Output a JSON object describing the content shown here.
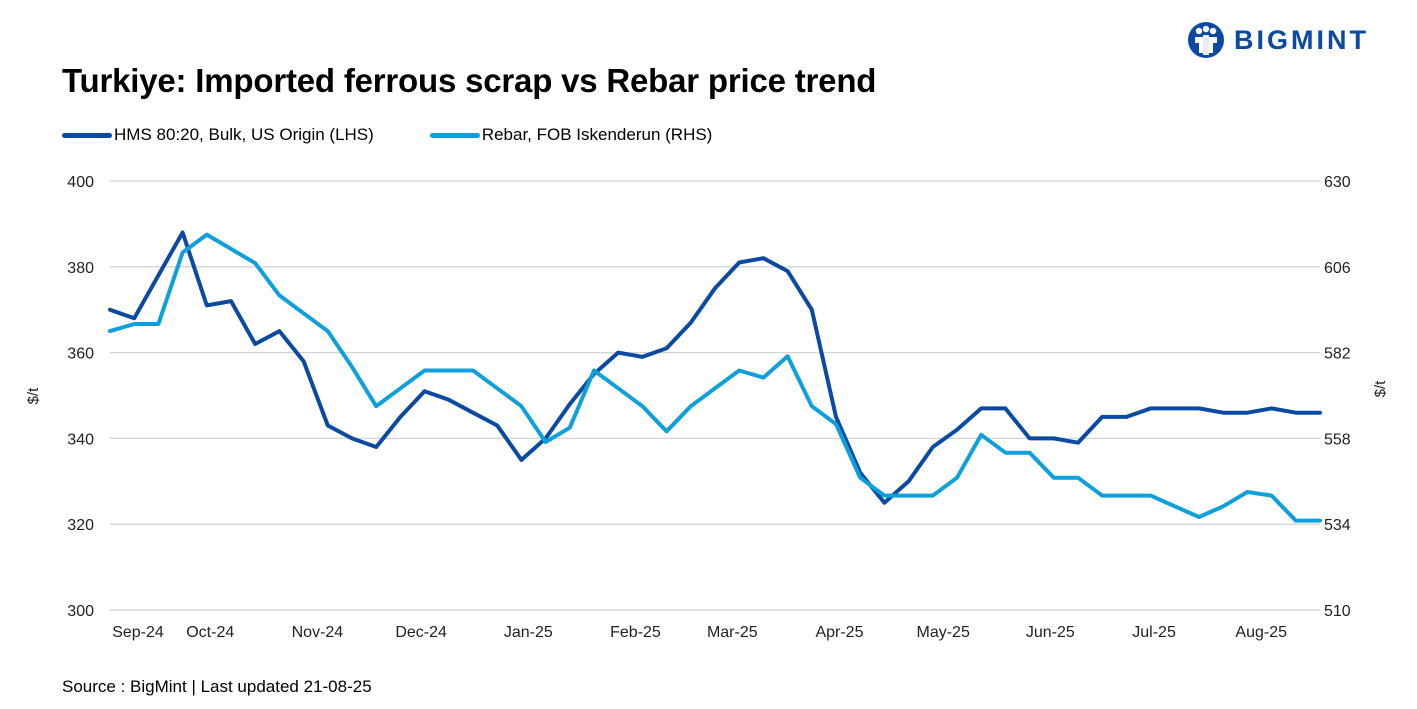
{
  "brand": {
    "name": "BIGMINT",
    "color": "#0b4aa2"
  },
  "title": "Turkiye: Imported ferrous scrap vs Rebar price trend",
  "source": "Source : BigMint | Last updated 21-08-25",
  "chart_data": {
    "type": "line",
    "x": [
      "2024-09-02",
      "2024-09-09",
      "2024-09-16",
      "2024-09-23",
      "2024-09-30",
      "2024-10-07",
      "2024-10-14",
      "2024-10-21",
      "2024-10-28",
      "2024-11-04",
      "2024-11-11",
      "2024-11-18",
      "2024-11-25",
      "2024-12-02",
      "2024-12-09",
      "2024-12-16",
      "2024-12-23",
      "2024-12-30",
      "2025-01-06",
      "2025-01-13",
      "2025-01-20",
      "2025-01-27",
      "2025-02-03",
      "2025-02-10",
      "2025-02-17",
      "2025-02-24",
      "2025-03-03",
      "2025-03-10",
      "2025-03-17",
      "2025-03-24",
      "2025-03-31",
      "2025-04-07",
      "2025-04-14",
      "2025-04-21",
      "2025-04-28",
      "2025-05-05",
      "2025-05-12",
      "2025-05-19",
      "2025-05-26",
      "2025-06-02",
      "2025-06-09",
      "2025-06-16",
      "2025-06-23",
      "2025-06-30",
      "2025-07-07",
      "2025-07-14",
      "2025-07-21",
      "2025-07-28",
      "2025-08-04",
      "2025-08-11",
      "2025-08-18"
    ],
    "x_tick_labels": [
      "Sep-24",
      "Oct-24",
      "Nov-24",
      "Dec-24",
      "Jan-25",
      "Feb-25",
      "Mar-25",
      "Apr-25",
      "May-25",
      "Jun-25",
      "Jul-25",
      "Aug-25"
    ],
    "x_ticks": [
      "2024-09-01",
      "2024-10-01",
      "2024-11-01",
      "2024-12-01",
      "2025-01-01",
      "2025-02-01",
      "2025-03-01",
      "2025-04-01",
      "2025-05-01",
      "2025-06-01",
      "2025-07-01",
      "2025-08-01"
    ],
    "y_left": {
      "label": "$/t",
      "min": 300,
      "max": 400,
      "ticks": [
        300,
        320,
        340,
        360,
        380,
        400
      ]
    },
    "y_right": {
      "label": "$/t",
      "min": 510,
      "max": 630,
      "ticks": [
        510,
        534,
        558,
        582,
        606,
        630
      ]
    },
    "grid": true,
    "legend_position": "top-left",
    "series": [
      {
        "name": "HMS 80:20, Bulk, US Origin (LHS)",
        "axis": "left",
        "color": "#0b4aa2",
        "values": [
          370,
          368,
          378,
          388,
          371,
          372,
          362,
          365,
          358,
          343,
          340,
          338,
          345,
          351,
          349,
          346,
          343,
          335,
          340,
          348,
          355,
          360,
          359,
          361,
          367,
          375,
          381,
          382,
          379,
          370,
          345,
          332,
          325,
          330,
          338,
          342,
          347,
          347,
          340,
          340,
          339,
          345,
          345,
          347,
          347,
          347,
          346,
          346,
          347,
          346,
          346
        ]
      },
      {
        "name": "Rebar, FOB Iskenderun (RHS)",
        "axis": "right",
        "color": "#0ea0dc",
        "values": [
          588,
          590,
          590,
          610,
          615,
          611,
          607,
          598,
          593,
          588,
          578,
          567,
          572,
          577,
          577,
          577,
          572,
          567,
          557,
          561,
          577,
          572,
          567,
          560,
          567,
          572,
          577,
          575,
          581,
          567,
          562,
          547,
          542,
          542,
          542,
          547,
          559,
          554,
          554,
          547,
          547,
          542,
          542,
          542,
          539,
          536,
          539,
          543,
          542,
          535,
          535
        ]
      }
    ]
  }
}
